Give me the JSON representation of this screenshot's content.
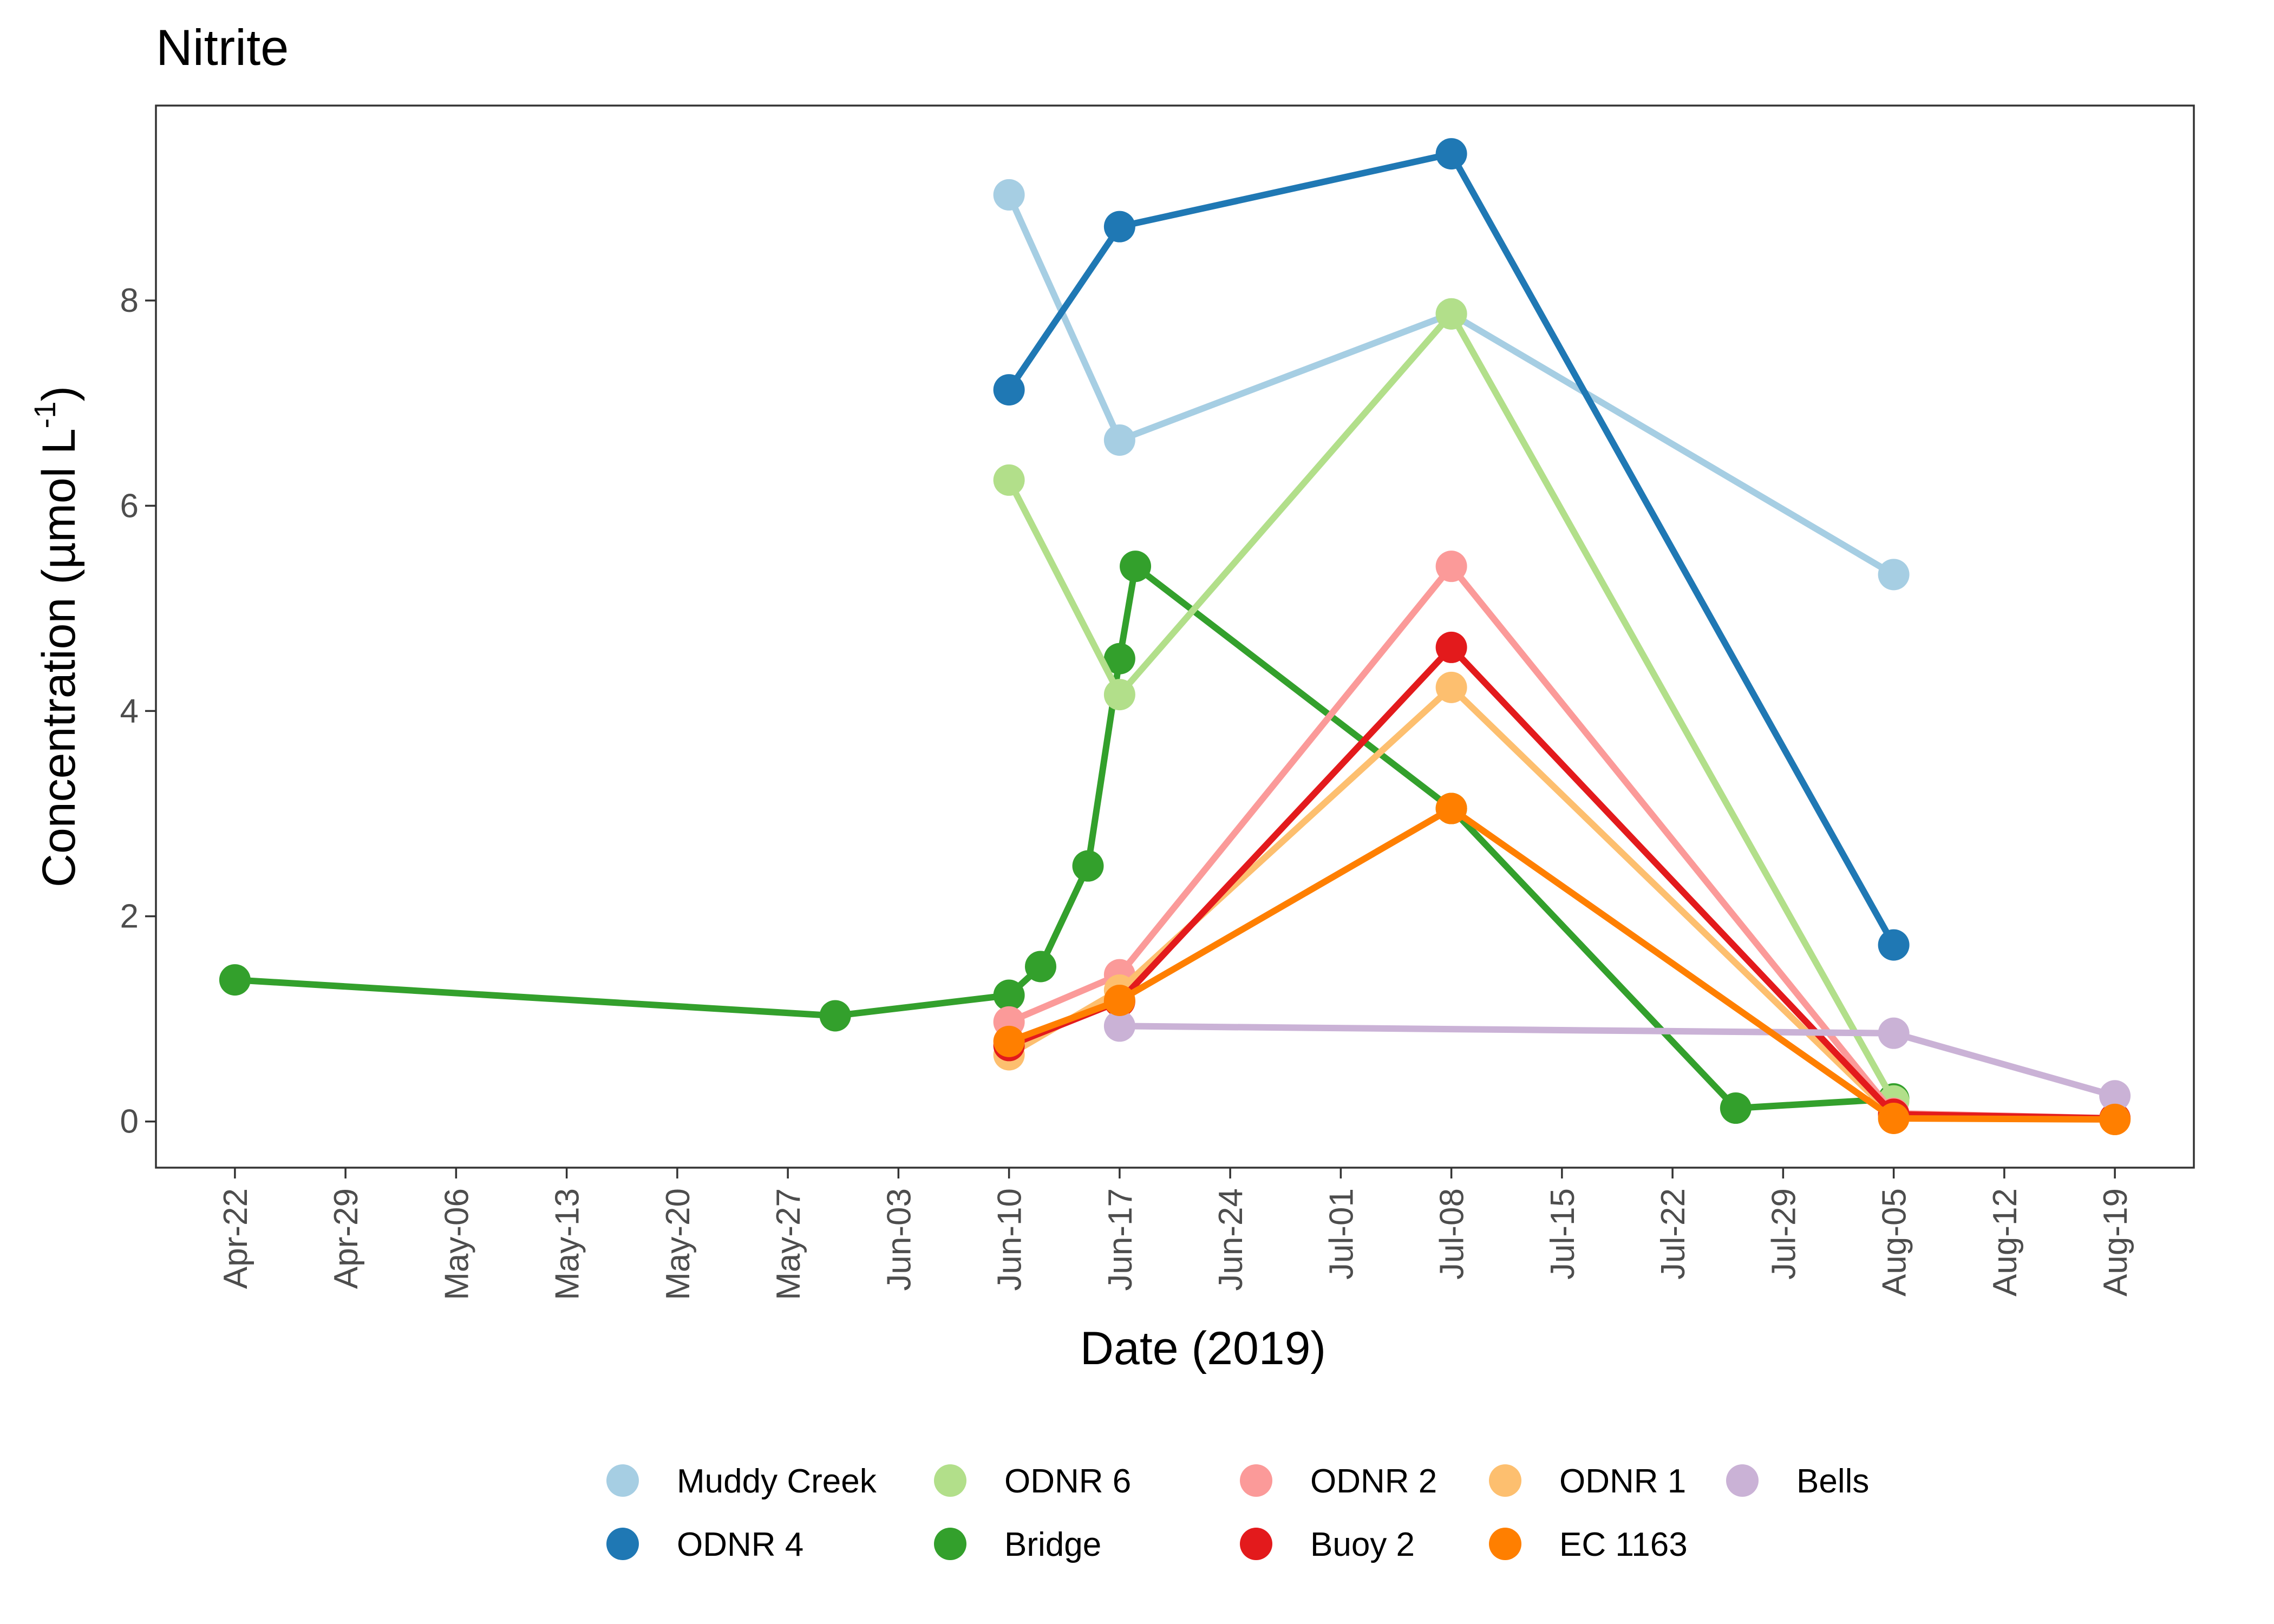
{
  "chart_data": {
    "type": "line",
    "title": "Nitrite",
    "xlabel": "Date (2019)",
    "ylabel": "Concentration (µmol L",
    "ylabel_sup": "-1",
    "ylabel_close": ")",
    "xlim": [
      "2019-04-17",
      "2019-08-24"
    ],
    "ylim": [
      -0.45,
      9.9
    ],
    "x_ticks": [
      {
        "date": "2019-04-22",
        "label": "Apr-22"
      },
      {
        "date": "2019-04-29",
        "label": "Apr-29"
      },
      {
        "date": "2019-05-06",
        "label": "May-06"
      },
      {
        "date": "2019-05-13",
        "label": "May-13"
      },
      {
        "date": "2019-05-20",
        "label": "May-20"
      },
      {
        "date": "2019-05-27",
        "label": "May-27"
      },
      {
        "date": "2019-06-03",
        "label": "Jun-03"
      },
      {
        "date": "2019-06-10",
        "label": "Jun-10"
      },
      {
        "date": "2019-06-17",
        "label": "Jun-17"
      },
      {
        "date": "2019-06-24",
        "label": "Jun-24"
      },
      {
        "date": "2019-07-01",
        "label": "Jul-01"
      },
      {
        "date": "2019-07-08",
        "label": "Jul-08"
      },
      {
        "date": "2019-07-15",
        "label": "Jul-15"
      },
      {
        "date": "2019-07-22",
        "label": "Jul-22"
      },
      {
        "date": "2019-07-29",
        "label": "Jul-29"
      },
      {
        "date": "2019-08-05",
        "label": "Aug-05"
      },
      {
        "date": "2019-08-12",
        "label": "Aug-12"
      },
      {
        "date": "2019-08-19",
        "label": "Aug-19"
      }
    ],
    "y_ticks": [
      {
        "value": 0,
        "label": "0"
      },
      {
        "value": 2,
        "label": "2"
      },
      {
        "value": 4,
        "label": "4"
      },
      {
        "value": 6,
        "label": "6"
      },
      {
        "value": 8,
        "label": "8"
      }
    ],
    "grid": false,
    "legend_position": "bottom",
    "series": [
      {
        "name": "Bridge",
        "color": "#33A02C",
        "points": [
          {
            "x": "2019-04-22",
            "y": 1.38
          },
          {
            "x": "2019-05-30",
            "y": 1.03
          },
          {
            "x": "2019-06-10",
            "y": 1.23
          },
          {
            "x": "2019-06-12",
            "y": 1.51
          },
          {
            "x": "2019-06-15",
            "y": 2.49
          },
          {
            "x": "2019-06-17",
            "y": 4.51
          },
          {
            "x": "2019-06-18",
            "y": 5.41
          },
          {
            "x": "2019-07-08",
            "y": 3.05
          },
          {
            "x": "2019-07-26",
            "y": 0.13
          },
          {
            "x": "2019-08-05",
            "y": 0.22
          }
        ]
      },
      {
        "name": "Muddy Creek",
        "color": "#A6CEE3",
        "points": [
          {
            "x": "2019-06-10",
            "y": 9.03
          },
          {
            "x": "2019-06-17",
            "y": 6.64
          },
          {
            "x": "2019-07-08",
            "y": 7.87
          },
          {
            "x": "2019-08-05",
            "y": 5.33
          }
        ]
      },
      {
        "name": "ODNR 6",
        "color": "#B2DF8A",
        "points": [
          {
            "x": "2019-06-10",
            "y": 6.25
          },
          {
            "x": "2019-06-17",
            "y": 4.16
          },
          {
            "x": "2019-07-08",
            "y": 7.87
          },
          {
            "x": "2019-08-05",
            "y": 0.2
          }
        ]
      },
      {
        "name": "ODNR 2",
        "color": "#FB9A99",
        "points": [
          {
            "x": "2019-06-10",
            "y": 0.97
          },
          {
            "x": "2019-06-17",
            "y": 1.43
          },
          {
            "x": "2019-07-08",
            "y": 5.41
          },
          {
            "x": "2019-08-05",
            "y": 0.08
          },
          {
            "x": "2019-08-19",
            "y": 0.03
          }
        ]
      },
      {
        "name": "ODNR 1",
        "color": "#FDBF6F",
        "points": [
          {
            "x": "2019-06-10",
            "y": 0.65
          },
          {
            "x": "2019-06-17",
            "y": 1.28
          },
          {
            "x": "2019-07-08",
            "y": 4.23
          },
          {
            "x": "2019-08-05",
            "y": 0.05
          },
          {
            "x": "2019-08-19",
            "y": 0.02
          }
        ]
      },
      {
        "name": "Buoy 2",
        "color": "#E31A1C",
        "points": [
          {
            "x": "2019-06-10",
            "y": 0.74
          },
          {
            "x": "2019-06-17",
            "y": 1.17
          },
          {
            "x": "2019-07-08",
            "y": 4.62
          },
          {
            "x": "2019-08-05",
            "y": 0.07
          },
          {
            "x": "2019-08-19",
            "y": 0.03
          }
        ]
      },
      {
        "name": "Bells",
        "color": "#CAB2D6",
        "points": [
          {
            "x": "2019-06-17",
            "y": 0.93
          },
          {
            "x": "2019-08-05",
            "y": 0.86
          },
          {
            "x": "2019-08-19",
            "y": 0.25
          }
        ]
      },
      {
        "name": "EC 1163",
        "color": "#FF7F00",
        "points": [
          {
            "x": "2019-06-10",
            "y": 0.78
          },
          {
            "x": "2019-06-17",
            "y": 1.18
          },
          {
            "x": "2019-07-08",
            "y": 3.05
          },
          {
            "x": "2019-08-05",
            "y": 0.03
          },
          {
            "x": "2019-08-19",
            "y": 0.02
          }
        ]
      },
      {
        "name": "ODNR 4",
        "color": "#1F78B4",
        "points": [
          {
            "x": "2019-06-10",
            "y": 7.13
          },
          {
            "x": "2019-06-17",
            "y": 8.72
          },
          {
            "x": "2019-07-08",
            "y": 9.43
          },
          {
            "x": "2019-08-05",
            "y": 1.72
          }
        ]
      }
    ],
    "legend": [
      [
        {
          "name": "Muddy Creek",
          "color": "#A6CEE3"
        },
        {
          "name": "ODNR 6",
          "color": "#B2DF8A"
        },
        {
          "name": "ODNR 2",
          "color": "#FB9A99"
        },
        {
          "name": "ODNR 1",
          "color": "#FDBF6F"
        },
        {
          "name": "Bells",
          "color": "#CAB2D6"
        }
      ],
      [
        {
          "name": "ODNR 4",
          "color": "#1F78B4"
        },
        {
          "name": "Bridge",
          "color": "#33A02C"
        },
        {
          "name": "Buoy 2",
          "color": "#E31A1C"
        },
        {
          "name": "EC 1163",
          "color": "#FF7F00"
        }
      ]
    ]
  }
}
